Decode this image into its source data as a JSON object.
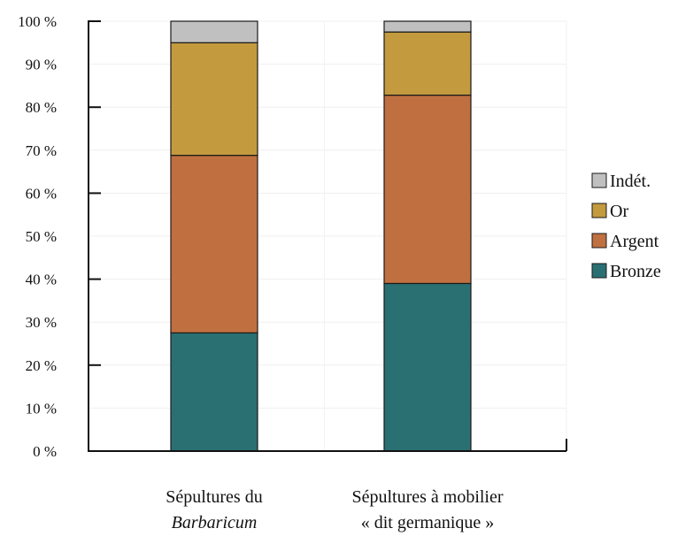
{
  "chart_data": {
    "type": "bar",
    "stacked": true,
    "percent_scale": true,
    "categories": [
      {
        "line1": "Sépultures du",
        "line2": "Barbaricum",
        "line2_italic": true
      },
      {
        "line1": "Sépultures à mobilier",
        "line2": "« dit germanique »",
        "line2_italic": false
      }
    ],
    "series": [
      {
        "name": "Bronze",
        "color": "#2a7073",
        "values": [
          27.5,
          39.0
        ]
      },
      {
        "name": "Argent",
        "color": "#c07040",
        "values": [
          41.3,
          43.8
        ]
      },
      {
        "name": "Or",
        "color": "#c39a3e",
        "values": [
          26.2,
          14.7
        ]
      },
      {
        "name": "Indét.",
        "color": "#c0c0c0",
        "values": [
          5.0,
          2.5
        ]
      }
    ],
    "legend_order": [
      "Indét.",
      "Or",
      "Argent",
      "Bronze"
    ],
    "legend_position": "right",
    "ylim": [
      0,
      100
    ],
    "yticks": [
      0,
      10,
      20,
      30,
      40,
      50,
      60,
      70,
      80,
      90,
      100
    ],
    "ytick_suffix": " %",
    "grid": true,
    "xlabel": "",
    "ylabel": "",
    "title": ""
  }
}
